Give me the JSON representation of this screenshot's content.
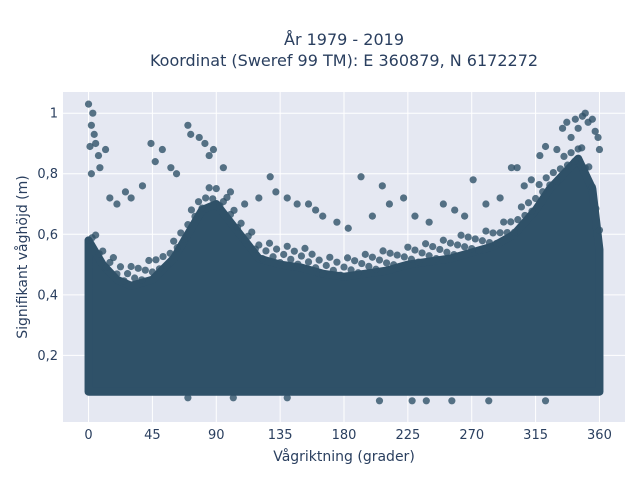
{
  "chart_data": {
    "type": "scatter",
    "title_line1": "År 1979 - 2019",
    "title_line2": "Koordinat (Sweref 99 TM): E 360879, N 6172272",
    "xlabel": "Vågriktning (grader)",
    "ylabel": "Signifikant våghöjd (m)",
    "xlim": [
      -18,
      378
    ],
    "ylim": [
      -0.02,
      1.07
    ],
    "xticks": [
      {
        "value": 0,
        "label": "0"
      },
      {
        "value": 45,
        "label": "45"
      },
      {
        "value": 90,
        "label": "90"
      },
      {
        "value": 135,
        "label": "135"
      },
      {
        "value": 180,
        "label": "180"
      },
      {
        "value": 225,
        "label": "225"
      },
      {
        "value": 270,
        "label": "270"
      },
      {
        "value": 315,
        "label": "315"
      },
      {
        "value": 360,
        "label": "360"
      }
    ],
    "yticks": [
      {
        "value": 0.2,
        "label": "0,2"
      },
      {
        "value": 0.4,
        "label": "0,4"
      },
      {
        "value": 0.6,
        "label": "0,6"
      },
      {
        "value": 0.8,
        "label": "0,8"
      },
      {
        "value": 1.0,
        "label": "1"
      }
    ],
    "grid": true,
    "legend": "none",
    "colors": {
      "marker": "#2f5168",
      "plot_bg": "#e5e8f2",
      "grid": "#ffffff"
    },
    "series": [
      {
        "dense_band_envelope": {
          "x": [
            0,
            10,
            20,
            30,
            45,
            60,
            70,
            80,
            90,
            100,
            110,
            120,
            135,
            150,
            165,
            180,
            195,
            210,
            225,
            240,
            255,
            270,
            285,
            300,
            315,
            325,
            335,
            345,
            355,
            360
          ],
          "y_low": [
            0.08,
            0.08,
            0.08,
            0.08,
            0.08,
            0.08,
            0.08,
            0.08,
            0.08,
            0.08,
            0.08,
            0.08,
            0.08,
            0.08,
            0.08,
            0.08,
            0.08,
            0.08,
            0.08,
            0.08,
            0.08,
            0.08,
            0.08,
            0.08,
            0.08,
            0.08,
            0.08,
            0.08,
            0.08,
            0.08
          ],
          "y_high": [
            0.58,
            0.5,
            0.45,
            0.43,
            0.45,
            0.52,
            0.6,
            0.68,
            0.7,
            0.64,
            0.58,
            0.52,
            0.5,
            0.49,
            0.47,
            0.46,
            0.47,
            0.48,
            0.5,
            0.51,
            0.52,
            0.54,
            0.56,
            0.6,
            0.68,
            0.75,
            0.8,
            0.85,
            0.75,
            0.55
          ]
        },
        "outliers": [
          [
            0,
            1.03
          ],
          [
            3,
            1.0
          ],
          [
            2,
            0.96
          ],
          [
            4,
            0.93
          ],
          [
            5,
            0.9
          ],
          [
            1,
            0.89
          ],
          [
            7,
            0.86
          ],
          [
            12,
            0.88
          ],
          [
            2,
            0.8
          ],
          [
            8,
            0.82
          ],
          [
            15,
            0.72
          ],
          [
            20,
            0.7
          ],
          [
            26,
            0.74
          ],
          [
            30,
            0.72
          ],
          [
            38,
            0.76
          ],
          [
            44,
            0.9
          ],
          [
            47,
            0.84
          ],
          [
            52,
            0.88
          ],
          [
            58,
            0.82
          ],
          [
            62,
            0.8
          ],
          [
            70,
            0.96
          ],
          [
            72,
            0.93
          ],
          [
            78,
            0.92
          ],
          [
            82,
            0.9
          ],
          [
            85,
            0.86
          ],
          [
            88,
            0.88
          ],
          [
            95,
            0.82
          ],
          [
            100,
            0.74
          ],
          [
            110,
            0.7
          ],
          [
            120,
            0.72
          ],
          [
            128,
            0.79
          ],
          [
            132,
            0.74
          ],
          [
            140,
            0.72
          ],
          [
            147,
            0.7
          ],
          [
            155,
            0.7
          ],
          [
            160,
            0.68
          ],
          [
            165,
            0.66
          ],
          [
            175,
            0.64
          ],
          [
            183,
            0.62
          ],
          [
            192,
            0.79
          ],
          [
            200,
            0.66
          ],
          [
            207,
            0.76
          ],
          [
            212,
            0.7
          ],
          [
            222,
            0.72
          ],
          [
            230,
            0.66
          ],
          [
            240,
            0.64
          ],
          [
            250,
            0.7
          ],
          [
            258,
            0.68
          ],
          [
            265,
            0.66
          ],
          [
            271,
            0.78
          ],
          [
            280,
            0.7
          ],
          [
            290,
            0.72
          ],
          [
            298,
            0.82
          ],
          [
            302,
            0.82
          ],
          [
            307,
            0.76
          ],
          [
            312,
            0.78
          ],
          [
            318,
            0.86
          ],
          [
            322,
            0.89
          ],
          [
            330,
            0.88
          ],
          [
            334,
            0.95
          ],
          [
            337,
            0.97
          ],
          [
            340,
            0.92
          ],
          [
            343,
            0.98
          ],
          [
            345,
            0.95
          ],
          [
            348,
            0.99
          ],
          [
            350,
            1.0
          ],
          [
            352,
            0.97
          ],
          [
            355,
            0.98
          ],
          [
            357,
            0.94
          ],
          [
            359,
            0.92
          ],
          [
            205,
            0.05
          ],
          [
            228,
            0.05
          ],
          [
            238,
            0.05
          ],
          [
            256,
            0.05
          ],
          [
            282,
            0.05
          ],
          [
            322,
            0.05
          ],
          [
            140,
            0.06
          ],
          [
            70,
            0.06
          ],
          [
            102,
            0.06
          ],
          [
            360,
            0.88
          ]
        ]
      }
    ]
  }
}
